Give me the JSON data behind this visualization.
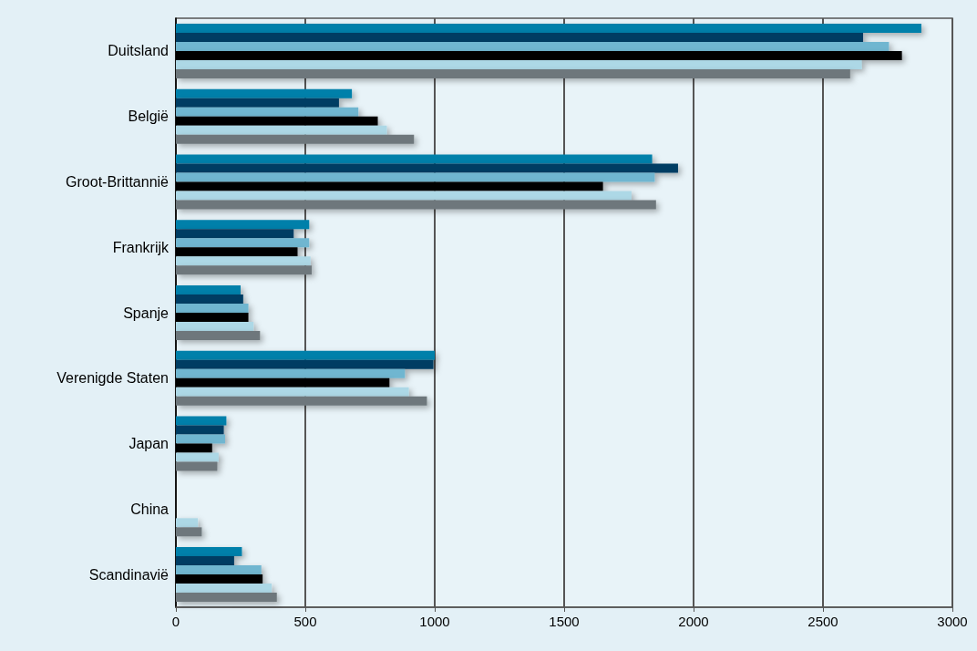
{
  "chart_data": {
    "type": "bar",
    "orientation": "horizontal",
    "categories": [
      "Duitsland",
      "België",
      "Groot-Brittannië",
      "Frankrijk",
      "Spanje",
      "Verenigde Staten",
      "Japan",
      "China",
      "Scandinavië"
    ],
    "series": [
      {
        "color": "#0080aa",
        "values": [
          2880,
          680,
          1840,
          515,
          250,
          1000,
          195,
          null,
          255
        ]
      },
      {
        "color": "#053d63",
        "values": [
          2655,
          630,
          1940,
          455,
          260,
          995,
          185,
          null,
          225
        ]
      },
      {
        "color": "#70b6d0",
        "values": [
          2755,
          705,
          1850,
          515,
          280,
          885,
          190,
          null,
          330
        ]
      },
      {
        "color": "#000000",
        "values": [
          2805,
          780,
          1650,
          470,
          280,
          825,
          140,
          null,
          335
        ]
      },
      {
        "color": "#add8e6",
        "values": [
          2650,
          815,
          1760,
          520,
          300,
          900,
          165,
          85,
          370
        ]
      },
      {
        "color": "#6e777b",
        "values": [
          2605,
          920,
          1855,
          525,
          325,
          970,
          160,
          100,
          390
        ]
      }
    ],
    "xlim": [
      0,
      3000
    ],
    "xticks": [
      0,
      500,
      1000,
      1500,
      2000,
      2500,
      3000
    ],
    "grid": "x"
  }
}
